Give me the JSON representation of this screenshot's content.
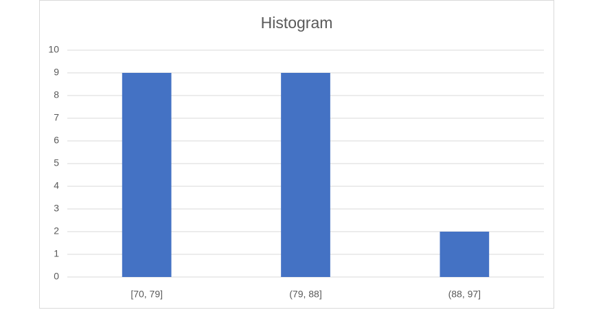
{
  "chart_data": {
    "type": "bar",
    "title": "Histogram",
    "categories": [
      "[70, 79]",
      "(79, 88]",
      "(88, 97]"
    ],
    "values": [
      9,
      9,
      2
    ],
    "color": "#4472c4",
    "ylim": [
      0,
      10
    ],
    "yticks": [
      0,
      1,
      2,
      3,
      4,
      5,
      6,
      7,
      8,
      9,
      10
    ],
    "grid": true
  }
}
